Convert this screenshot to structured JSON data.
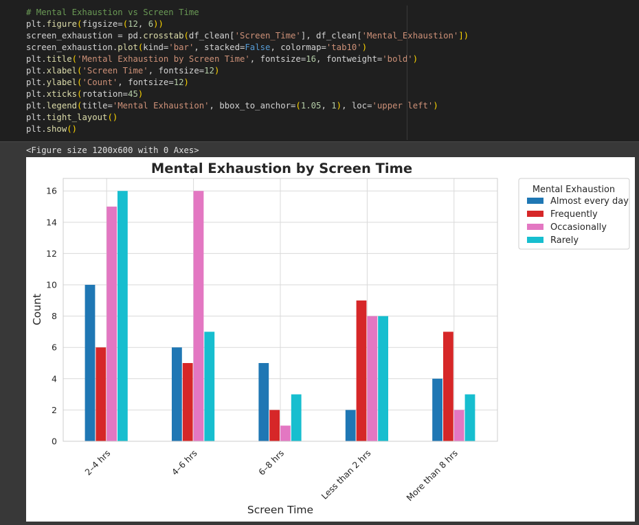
{
  "code_cell": {
    "lines": [
      [
        {
          "t": "# Mental Exhaustion vs Screen Time",
          "c": "cm"
        }
      ],
      [
        {
          "t": "plt.",
          "c": ""
        },
        {
          "t": "figure",
          "c": "fn"
        },
        {
          "t": "(",
          "c": "pr"
        },
        {
          "t": "figsize=",
          "c": ""
        },
        {
          "t": "(",
          "c": "pr"
        },
        {
          "t": "12",
          "c": "nu"
        },
        {
          "t": ", ",
          "c": ""
        },
        {
          "t": "6",
          "c": "nu"
        },
        {
          "t": "))",
          "c": "pr"
        }
      ],
      [
        {
          "t": "screen_exhaustion = pd.",
          "c": ""
        },
        {
          "t": "crosstab",
          "c": "fn"
        },
        {
          "t": "(",
          "c": "pr"
        },
        {
          "t": "df_clean[",
          "c": ""
        },
        {
          "t": "'Screen_Time'",
          "c": "st"
        },
        {
          "t": "], df_clean[",
          "c": ""
        },
        {
          "t": "'Mental_Exhaustion'",
          "c": "st"
        },
        {
          "t": "])",
          "c": "pr"
        }
      ],
      [
        {
          "t": "screen_exhaustion.",
          "c": ""
        },
        {
          "t": "plot",
          "c": "fn"
        },
        {
          "t": "(",
          "c": "pr"
        },
        {
          "t": "kind=",
          "c": ""
        },
        {
          "t": "'bar'",
          "c": "st"
        },
        {
          "t": ", stacked=",
          "c": ""
        },
        {
          "t": "False",
          "c": "kw"
        },
        {
          "t": ", colormap=",
          "c": ""
        },
        {
          "t": "'tab10'",
          "c": "st"
        },
        {
          "t": ")",
          "c": "pr"
        }
      ],
      [
        {
          "t": "plt.",
          "c": ""
        },
        {
          "t": "title",
          "c": "fn"
        },
        {
          "t": "(",
          "c": "pr"
        },
        {
          "t": "'Mental Exhaustion by Screen Time'",
          "c": "st"
        },
        {
          "t": ", fontsize=",
          "c": ""
        },
        {
          "t": "16",
          "c": "nu"
        },
        {
          "t": ", fontweight=",
          "c": ""
        },
        {
          "t": "'bold'",
          "c": "st"
        },
        {
          "t": ")",
          "c": "pr"
        }
      ],
      [
        {
          "t": "plt.",
          "c": ""
        },
        {
          "t": "xlabel",
          "c": "fn"
        },
        {
          "t": "(",
          "c": "pr"
        },
        {
          "t": "'Screen Time'",
          "c": "st"
        },
        {
          "t": ", fontsize=",
          "c": ""
        },
        {
          "t": "12",
          "c": "nu"
        },
        {
          "t": ")",
          "c": "pr"
        }
      ],
      [
        {
          "t": "plt.",
          "c": ""
        },
        {
          "t": "ylabel",
          "c": "fn"
        },
        {
          "t": "(",
          "c": "pr"
        },
        {
          "t": "'Count'",
          "c": "st"
        },
        {
          "t": ", fontsize=",
          "c": ""
        },
        {
          "t": "12",
          "c": "nu"
        },
        {
          "t": ")",
          "c": "pr"
        }
      ],
      [
        {
          "t": "plt.",
          "c": ""
        },
        {
          "t": "xticks",
          "c": "fn"
        },
        {
          "t": "(",
          "c": "pr"
        },
        {
          "t": "rotation=",
          "c": ""
        },
        {
          "t": "45",
          "c": "nu"
        },
        {
          "t": ")",
          "c": "pr"
        }
      ],
      [
        {
          "t": "plt.",
          "c": ""
        },
        {
          "t": "legend",
          "c": "fn"
        },
        {
          "t": "(",
          "c": "pr"
        },
        {
          "t": "title=",
          "c": ""
        },
        {
          "t": "'Mental Exhaustion'",
          "c": "st"
        },
        {
          "t": ", bbox_to_anchor=",
          "c": ""
        },
        {
          "t": "(",
          "c": "pr"
        },
        {
          "t": "1.05",
          "c": "nu"
        },
        {
          "t": ", ",
          "c": ""
        },
        {
          "t": "1",
          "c": "nu"
        },
        {
          "t": ")",
          "c": "pr"
        },
        {
          "t": ", loc=",
          "c": ""
        },
        {
          "t": "'upper left'",
          "c": "st"
        },
        {
          "t": ")",
          "c": "pr"
        }
      ],
      [
        {
          "t": "plt.",
          "c": ""
        },
        {
          "t": "tight_layout",
          "c": "fn"
        },
        {
          "t": "()",
          "c": "pr"
        }
      ],
      [
        {
          "t": "plt.",
          "c": ""
        },
        {
          "t": "show",
          "c": "fn"
        },
        {
          "t": "()",
          "c": "pr"
        }
      ]
    ]
  },
  "output": {
    "figure_text": "<Figure size 1200x600 with 0 Axes>"
  },
  "chart_data": {
    "type": "bar",
    "title": "Mental Exhaustion by Screen Time",
    "xlabel": "Screen Time",
    "ylabel": "Count",
    "ylim": [
      0,
      16.8
    ],
    "yticks": [
      0,
      2,
      4,
      6,
      8,
      10,
      12,
      14,
      16
    ],
    "grid": true,
    "legend_title": "Mental Exhaustion",
    "legend_placement": "outside upper-right",
    "categories": [
      "2–4 hrs",
      "4–6 hrs",
      "6–8 hrs",
      "Less than 2 hrs",
      "More than 8 hrs"
    ],
    "series": [
      {
        "name": "Almost every day",
        "color": "#1f77b4",
        "values": [
          10,
          6,
          5,
          2,
          4
        ]
      },
      {
        "name": "Frequently",
        "color": "#d62728",
        "values": [
          6,
          5,
          2,
          9,
          7
        ]
      },
      {
        "name": "Occasionally",
        "color": "#e377c2",
        "values": [
          15,
          16,
          1,
          8,
          2
        ]
      },
      {
        "name": "Rarely",
        "color": "#17becf",
        "values": [
          16,
          7,
          3,
          8,
          3
        ]
      }
    ]
  }
}
